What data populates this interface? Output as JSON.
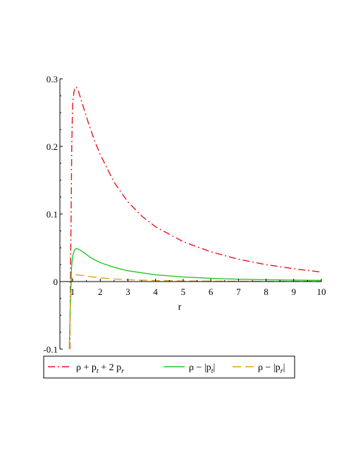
{
  "chart_data": {
    "type": "line",
    "title": "",
    "xlabel": "r",
    "ylabel": "",
    "xlim": [
      0.5,
      10
    ],
    "ylim": [
      -0.1,
      0.3
    ],
    "x_ticks": [
      "1",
      "2",
      "3",
      "4",
      "5",
      "6",
      "7",
      "8",
      "9",
      "10"
    ],
    "y_ticks": [
      "-0.1",
      "0",
      "0.1",
      "0.2",
      "0.3"
    ],
    "x_tick_values": [
      1,
      2,
      3,
      4,
      5,
      6,
      7,
      8,
      9,
      10
    ],
    "y_tick_values": [
      -0.1,
      0,
      0.1,
      0.2,
      0.3
    ],
    "grid": false,
    "legend_position": "bottom",
    "series": [
      {
        "legend": {
          "parts": [
            "ρ + p",
            "t",
            " + 2 p",
            "r"
          ]
        },
        "color": "#e8141e",
        "dash": "dash-dot",
        "x": [
          0.9,
          0.93,
          0.97,
          1.0,
          1.05,
          1.1,
          1.15,
          1.2,
          1.3,
          1.4,
          1.6,
          1.8,
          2.0,
          2.5,
          3.0,
          3.5,
          4.0,
          5.0,
          6.0,
          7.0,
          8.0,
          9.0,
          10.0
        ],
        "y": [
          -0.1,
          0.03,
          0.2,
          0.262,
          0.281,
          0.288,
          0.287,
          0.283,
          0.27,
          0.257,
          0.231,
          0.208,
          0.188,
          0.147,
          0.118,
          0.097,
          0.081,
          0.059,
          0.044,
          0.033,
          0.025,
          0.019,
          0.014
        ]
      },
      {
        "legend": {
          "parts": [
            "ρ − |p",
            "t",
            "|"
          ]
        },
        "color": "#22c92a",
        "dash": "solid",
        "x": [
          0.88,
          0.92,
          0.96,
          1.0,
          1.05,
          1.1,
          1.15,
          1.2,
          1.3,
          1.4,
          1.6,
          1.8,
          2.0,
          2.5,
          3.0,
          4.0,
          5.0,
          6.0,
          7.0,
          8.0,
          9.0,
          10.0
        ],
        "y": [
          -0.1,
          -0.03,
          0.02,
          0.037,
          0.045,
          0.048,
          0.049,
          0.048,
          0.046,
          0.043,
          0.037,
          0.032,
          0.028,
          0.021,
          0.016,
          0.01,
          0.0068,
          0.0048,
          0.0035,
          0.0027,
          0.0021,
          0.0017
        ]
      },
      {
        "legend": {
          "parts": [
            "ρ − |p",
            "r",
            "|"
          ]
        },
        "color": "#e0a020",
        "dash": "dashed",
        "x": [
          0.88,
          0.92,
          0.96,
          1.0,
          1.1,
          1.2,
          1.4,
          1.6,
          2.0,
          2.5,
          3.0,
          4.0,
          5.0,
          6.0,
          7.0,
          8.0,
          9.0,
          10.0
        ],
        "y": [
          -0.1,
          -0.04,
          0.002,
          0.007,
          0.0095,
          0.0098,
          0.0088,
          0.0075,
          0.0055,
          0.0038,
          0.0027,
          0.0015,
          0.0009,
          0.0006,
          0.0004,
          0.0003,
          0.0002,
          0.0001
        ]
      }
    ]
  }
}
